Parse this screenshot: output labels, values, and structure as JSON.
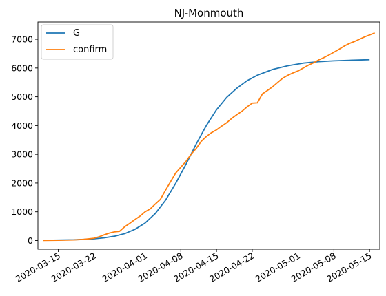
{
  "chart_data": {
    "type": "line",
    "title": "NJ-Monmouth",
    "xlabel": "",
    "ylabel": "",
    "xlim": [
      "2020-03-11",
      "2020-05-17"
    ],
    "ylim": [
      -300,
      7600
    ],
    "x_ticks": [
      "2020-03-15",
      "2020-03-22",
      "2020-04-01",
      "2020-04-08",
      "2020-04-15",
      "2020-04-22",
      "2020-05-01",
      "2020-05-08",
      "2020-05-15"
    ],
    "y_ticks": [
      0,
      1000,
      2000,
      3000,
      4000,
      5000,
      6000,
      7000
    ],
    "legend": {
      "position": "top-left"
    },
    "grid": false,
    "series": [
      {
        "name": "G",
        "color": "#1f77b4",
        "points": [
          [
            "2020-03-12",
            10
          ],
          [
            "2020-03-15",
            15
          ],
          [
            "2020-03-18",
            25
          ],
          [
            "2020-03-20",
            40
          ],
          [
            "2020-03-22",
            60
          ],
          [
            "2020-03-24",
            95
          ],
          [
            "2020-03-26",
            150
          ],
          [
            "2020-03-28",
            240
          ],
          [
            "2020-03-30",
            390
          ],
          [
            "2020-04-01",
            610
          ],
          [
            "2020-04-03",
            940
          ],
          [
            "2020-04-05",
            1400
          ],
          [
            "2020-04-07",
            1990
          ],
          [
            "2020-04-09",
            2650
          ],
          [
            "2020-04-11",
            3350
          ],
          [
            "2020-04-13",
            4000
          ],
          [
            "2020-04-15",
            4550
          ],
          [
            "2020-04-17",
            4980
          ],
          [
            "2020-04-19",
            5300
          ],
          [
            "2020-04-21",
            5560
          ],
          [
            "2020-04-23",
            5750
          ],
          [
            "2020-04-26",
            5950
          ],
          [
            "2020-04-29",
            6080
          ],
          [
            "2020-05-02",
            6170
          ],
          [
            "2020-05-05",
            6220
          ],
          [
            "2020-05-08",
            6250
          ],
          [
            "2020-05-11",
            6270
          ],
          [
            "2020-05-15",
            6290
          ]
        ]
      },
      {
        "name": "confirm",
        "color": "#ff7f0e",
        "points": [
          [
            "2020-03-12",
            5
          ],
          [
            "2020-03-15",
            10
          ],
          [
            "2020-03-18",
            20
          ],
          [
            "2020-03-20",
            40
          ],
          [
            "2020-03-22",
            80
          ],
          [
            "2020-03-23",
            130
          ],
          [
            "2020-03-24",
            200
          ],
          [
            "2020-03-25",
            260
          ],
          [
            "2020-03-26",
            300
          ],
          [
            "2020-03-27",
            320
          ],
          [
            "2020-03-28",
            480
          ],
          [
            "2020-03-29",
            600
          ],
          [
            "2020-03-30",
            730
          ],
          [
            "2020-03-31",
            850
          ],
          [
            "2020-04-01",
            1000
          ],
          [
            "2020-04-02",
            1100
          ],
          [
            "2020-04-03",
            1270
          ],
          [
            "2020-04-04",
            1430
          ],
          [
            "2020-04-05",
            1750
          ],
          [
            "2020-04-06",
            2050
          ],
          [
            "2020-04-07",
            2350
          ],
          [
            "2020-04-08",
            2550
          ],
          [
            "2020-04-09",
            2750
          ],
          [
            "2020-04-10",
            3000
          ],
          [
            "2020-04-11",
            3200
          ],
          [
            "2020-04-12",
            3450
          ],
          [
            "2020-04-13",
            3620
          ],
          [
            "2020-04-14",
            3750
          ],
          [
            "2020-04-15",
            3850
          ],
          [
            "2020-04-16",
            3980
          ],
          [
            "2020-04-17",
            4100
          ],
          [
            "2020-04-18",
            4250
          ],
          [
            "2020-04-19",
            4380
          ],
          [
            "2020-04-20",
            4500
          ],
          [
            "2020-04-21",
            4650
          ],
          [
            "2020-04-22",
            4780
          ],
          [
            "2020-04-23",
            4790
          ],
          [
            "2020-04-24",
            5100
          ],
          [
            "2020-04-25",
            5220
          ],
          [
            "2020-04-26",
            5350
          ],
          [
            "2020-04-27",
            5500
          ],
          [
            "2020-04-28",
            5650
          ],
          [
            "2020-04-29",
            5750
          ],
          [
            "2020-04-30",
            5830
          ],
          [
            "2020-05-01",
            5900
          ],
          [
            "2020-05-02",
            6000
          ],
          [
            "2020-05-03",
            6100
          ],
          [
            "2020-05-04",
            6180
          ],
          [
            "2020-05-05",
            6280
          ],
          [
            "2020-05-06",
            6360
          ],
          [
            "2020-05-07",
            6450
          ],
          [
            "2020-05-08",
            6550
          ],
          [
            "2020-05-09",
            6650
          ],
          [
            "2020-05-10",
            6760
          ],
          [
            "2020-05-11",
            6850
          ],
          [
            "2020-05-12",
            6920
          ],
          [
            "2020-05-13",
            7000
          ],
          [
            "2020-05-14",
            7080
          ],
          [
            "2020-05-15",
            7150
          ],
          [
            "2020-05-16",
            7220
          ]
        ]
      }
    ]
  }
}
